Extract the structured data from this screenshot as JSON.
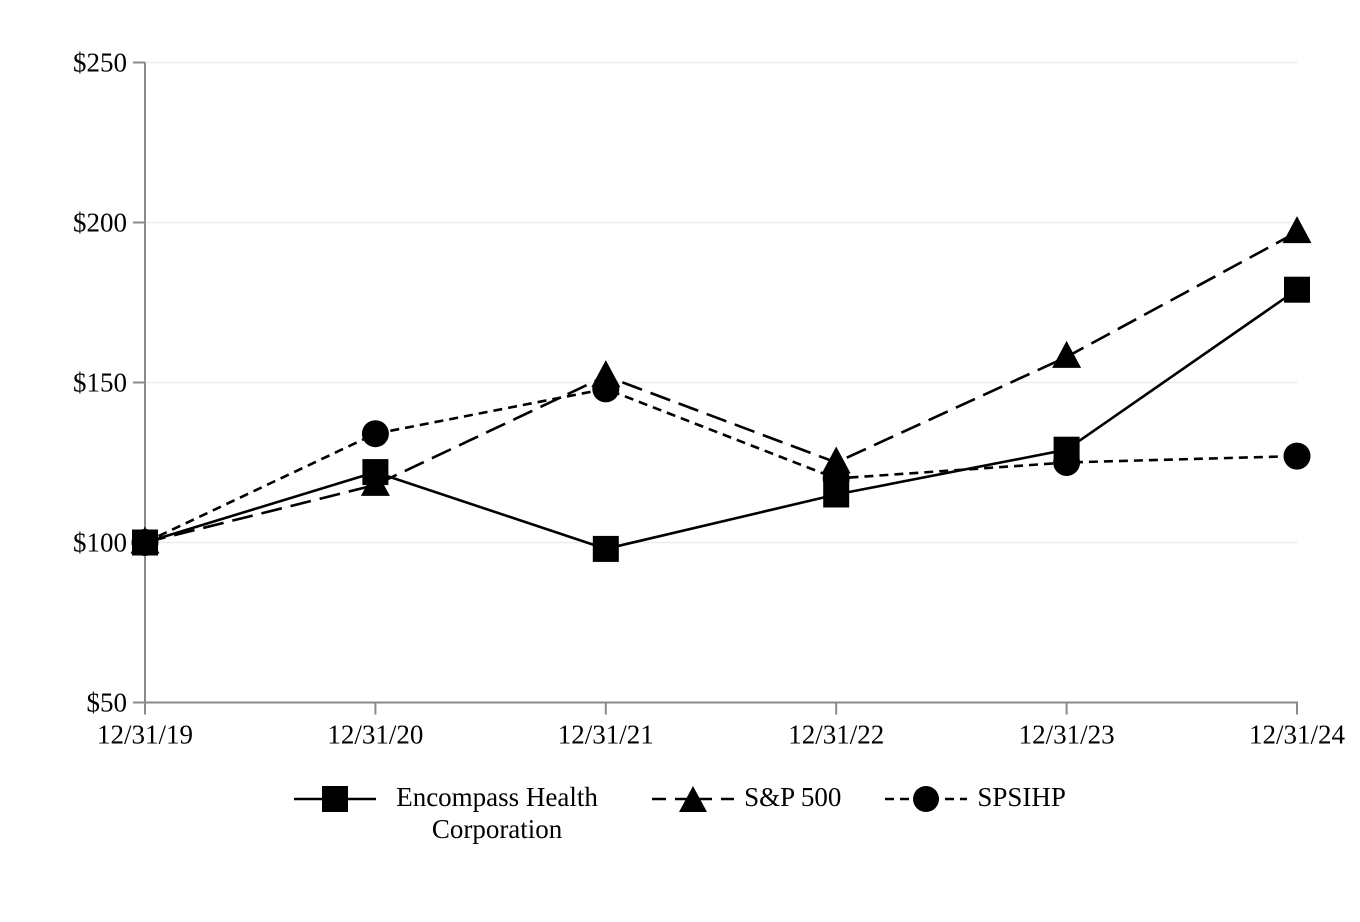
{
  "page": {
    "background_color": "#ffffff"
  },
  "chart_data": {
    "type": "line",
    "title": "",
    "categories": [
      "12/31/19",
      "12/31/20",
      "12/31/21",
      "12/31/22",
      "12/31/23",
      "12/31/24"
    ],
    "series": [
      {
        "name": "Encompass Health Corporation",
        "marker": "square",
        "line_style": "solid",
        "color": "#000000",
        "values": [
          100,
          122,
          98,
          115,
          129,
          179
        ]
      },
      {
        "name": "S&P 500",
        "marker": "triangle",
        "line_style": "long-dash",
        "color": "#000000",
        "values": [
          100,
          118,
          152,
          125,
          158,
          197
        ]
      },
      {
        "name": "SPSIHP",
        "marker": "circle",
        "line_style": "short-dash",
        "color": "#000000",
        "values": [
          100,
          134,
          148,
          120,
          125,
          127
        ]
      }
    ],
    "y_axis": {
      "min": 50,
      "max": 250,
      "tick_interval": 50,
      "tick_labels": [
        "$50",
        "$100",
        "$150",
        "$200",
        "$250"
      ]
    },
    "x_axis": {
      "label": ""
    },
    "grid": "horizontal",
    "legend_position": "bottom",
    "colors": {
      "gridline": "#ececec",
      "axis": "#8a8a8a",
      "text": "#000000",
      "series": "#000000"
    }
  }
}
